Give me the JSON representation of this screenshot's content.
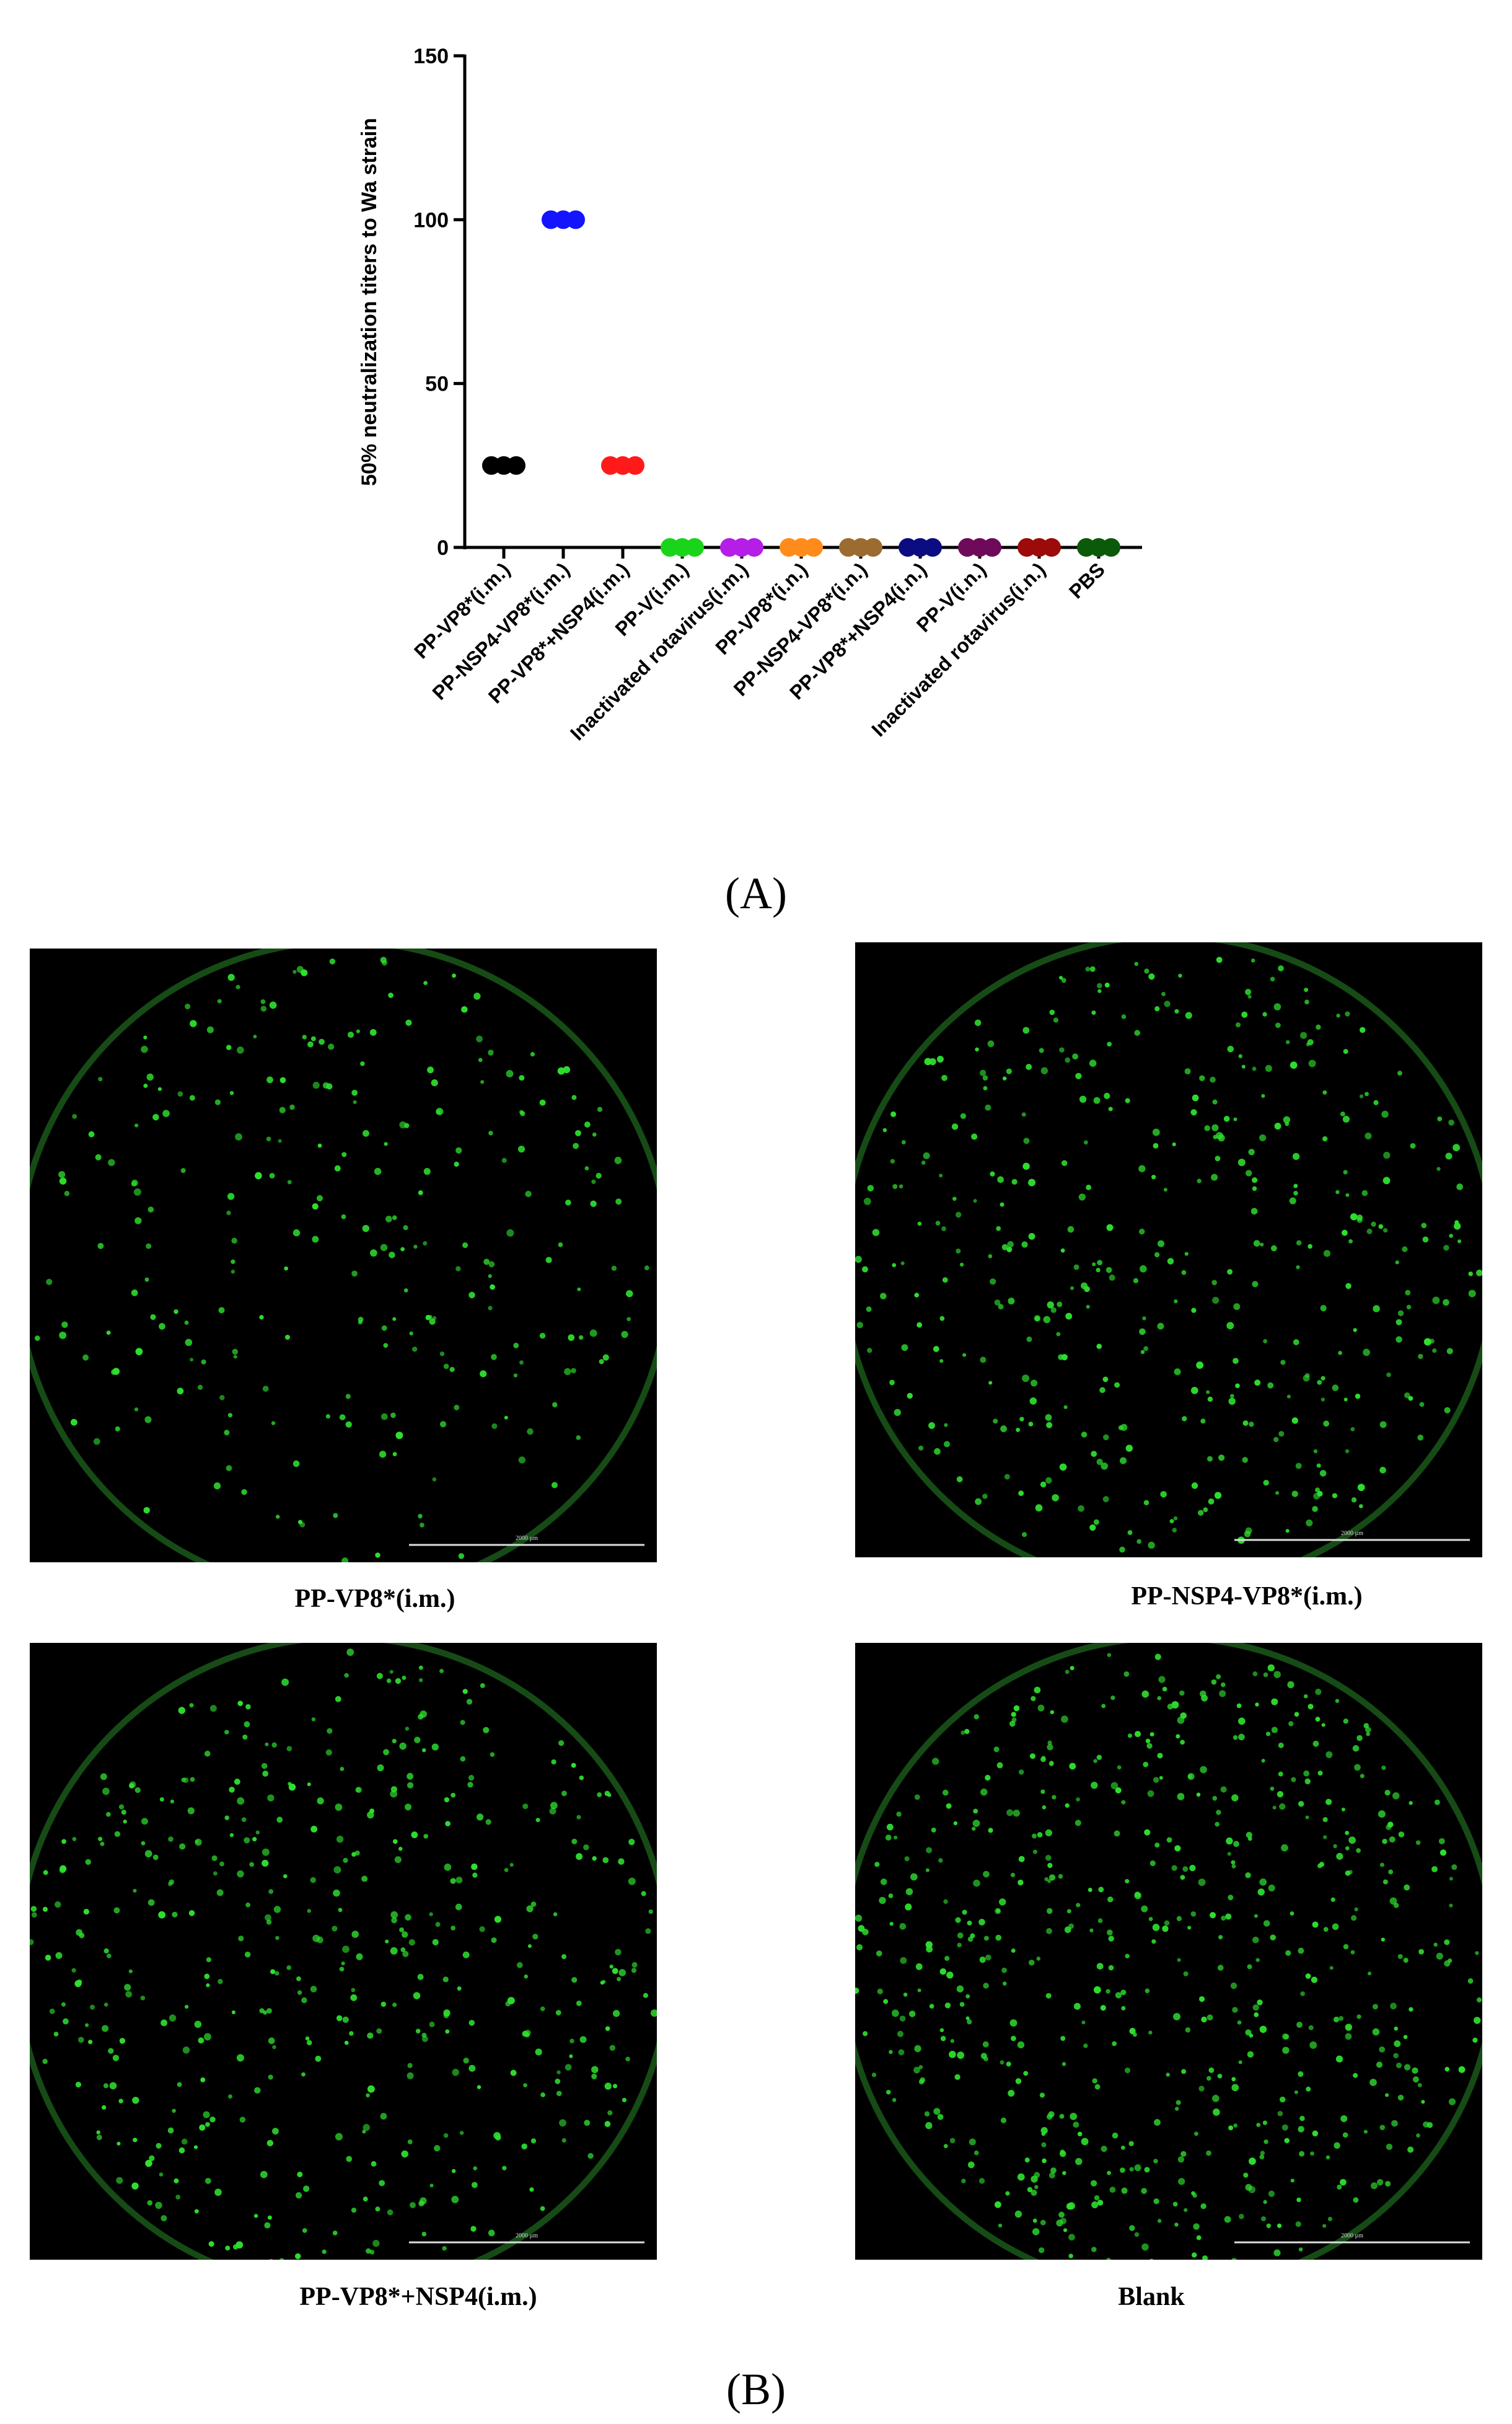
{
  "chart_data": {
    "type": "dot",
    "ylabel": "50% neutralization titers  to Wa strain",
    "categories": [
      "PP-VP8*(i.m.)",
      "PP-NSP4-VP8*(i.m.)",
      "PP-VP8*+NSP4(i.m.)",
      "PP-V(i.m.)",
      "Inactivated rotavirus(i.m.)",
      "PP-VP8*(i.n.)",
      "PP-NSP4-VP8*(i.n.)",
      "PP-VP8*+NSP4(i.n.)",
      "PP-V(i.n.)",
      "Inactivated rotavirus(i.n.)",
      "PBS"
    ],
    "values": [
      [
        25,
        25,
        25
      ],
      [
        100,
        100,
        100
      ],
      [
        25,
        25,
        25
      ],
      [
        0,
        0,
        0
      ],
      [
        0,
        0,
        0
      ],
      [
        0,
        0,
        0
      ],
      [
        0,
        0,
        0
      ],
      [
        0,
        0,
        0
      ],
      [
        0,
        0,
        0
      ],
      [
        0,
        0,
        0
      ],
      [
        0,
        0,
        0
      ]
    ],
    "colors": [
      "#000000",
      "#1414ff",
      "#ff1a1a",
      "#1ad41a",
      "#b41ee6",
      "#ff8c1a",
      "#9c6b30",
      "#0c0c82",
      "#6e0a5a",
      "#9c0a0a",
      "#0a5a0a"
    ],
    "ylim": [
      0,
      150
    ],
    "yticks": [
      0,
      50,
      100,
      150
    ]
  },
  "panel_a_label": "(A)",
  "panel_b_label": "(B)",
  "images": [
    {
      "caption": "PP-VP8*(i.m.)",
      "scale_bar": "2000 µm"
    },
    {
      "caption": "PP-NSP4-VP8*(i.m.)",
      "scale_bar": "2000 µm"
    },
    {
      "caption": "PP-VP8*+NSP4(i.m.)",
      "scale_bar": "2000 µm"
    },
    {
      "caption": "Blank",
      "scale_bar": "2000 µm"
    }
  ]
}
